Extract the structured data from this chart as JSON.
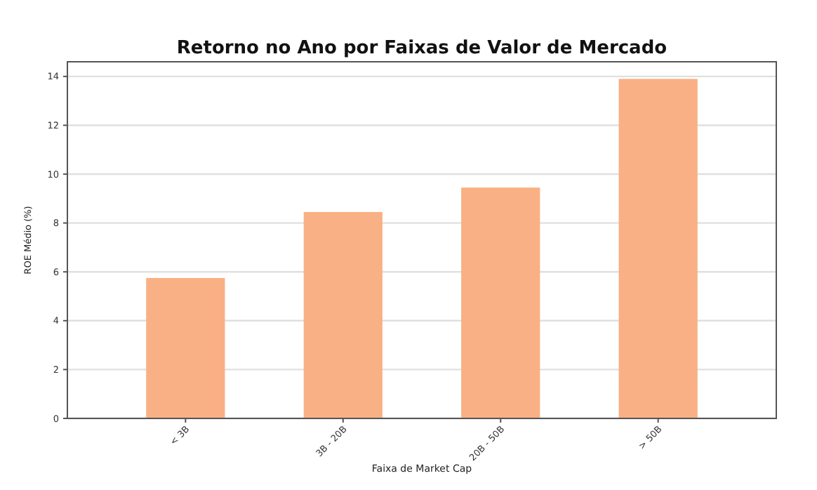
{
  "chart_data": {
    "type": "bar",
    "title": "Retorno no Ano por Faixas de Valor de Mercado",
    "xlabel": "Faixa de Market Cap",
    "ylabel": "ROE Médio (%)",
    "categories": [
      "< 3B",
      "3B - 20B",
      "20B - 50B",
      "> 50B"
    ],
    "values": [
      5.75,
      8.45,
      9.45,
      13.9
    ],
    "color": "#f9b084",
    "ylim": [
      0,
      14.6
    ],
    "yticks": [
      0,
      2,
      4,
      6,
      8,
      10,
      12,
      14
    ],
    "grid": "y"
  }
}
